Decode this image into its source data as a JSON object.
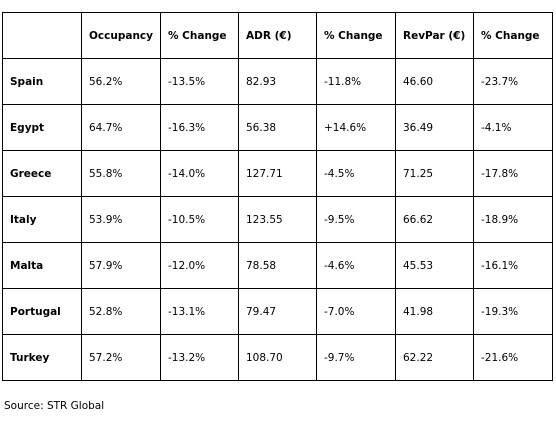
{
  "table": {
    "headers": [
      "",
      "Occupancy",
      "% Change",
      "ADR (€)",
      "% Change",
      "RevPar (€)",
      "% Change"
    ],
    "rows": [
      [
        "Spain",
        "56.2%",
        "-13.5%",
        "82.93",
        "-11.8%",
        "46.60",
        "-23.7%"
      ],
      [
        "Egypt",
        "64.7%",
        "-16.3%",
        "56.38",
        "+14.6%",
        "36.49",
        "-4.1%"
      ],
      [
        "Greece",
        "55.8%",
        "-14.0%",
        "127.71",
        "-4.5%",
        "71.25",
        "-17.8%"
      ],
      [
        "Italy",
        "53.9%",
        "-10.5%",
        "123.55",
        "-9.5%",
        "66.62",
        "-18.9%"
      ],
      [
        "Malta",
        "57.9%",
        "-12.0%",
        "78.58",
        "-4.6%",
        "45.53",
        "-16.1%"
      ],
      [
        "Portugal",
        "52.8%",
        "-13.1%",
        "79.47",
        "-7.0%",
        "41.98",
        "-19.3%"
      ],
      [
        "Turkey",
        "57.2%",
        "-13.2%",
        "108.70",
        "-9.7%",
        "62.22",
        "-21.6%"
      ]
    ]
  },
  "source": "Source: STR Global"
}
